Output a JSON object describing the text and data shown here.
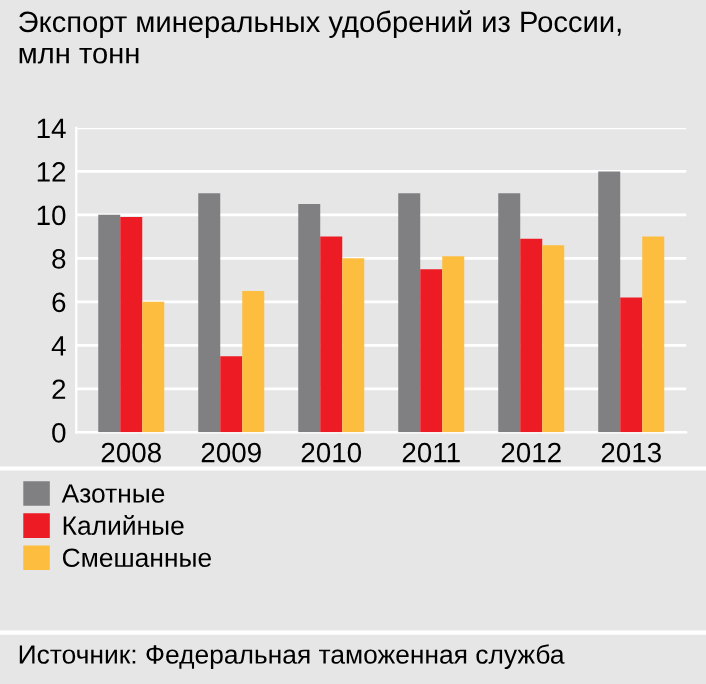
{
  "chart_data": {
    "type": "bar",
    "title": "Экспорт минеральных удобрений из России,\nмлн тонн",
    "categories": [
      "2008",
      "2009",
      "2010",
      "2011",
      "2012",
      "2013"
    ],
    "series": [
      {
        "name": "Азотные",
        "color": "#808083",
        "values": [
          10,
          11,
          10.5,
          11,
          11,
          12
        ]
      },
      {
        "name": "Калийные",
        "color": "#ed1c24",
        "values": [
          9.9,
          3.5,
          9,
          7.5,
          8.9,
          6.2
        ]
      },
      {
        "name": "Смешанные",
        "color": "#fdbd3f",
        "values": [
          6,
          6.5,
          8,
          8.1,
          8.6,
          9
        ]
      }
    ],
    "ylim": [
      0,
      14
    ],
    "yticks": [
      0,
      2,
      4,
      6,
      8,
      10,
      12,
      14
    ],
    "grid": "y",
    "legend": "bottom left",
    "annotations": [
      "Источник: Федеральная таможенная служба"
    ]
  }
}
